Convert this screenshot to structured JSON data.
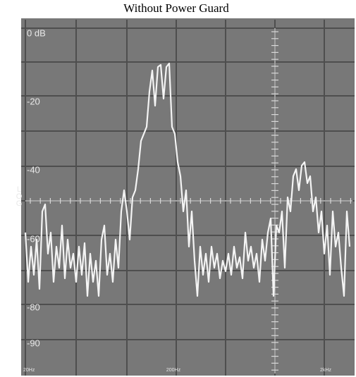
{
  "title": "Without Power Guard",
  "screen": {
    "y_labels": [
      "0 dB",
      "-20",
      "-40",
      "-60",
      "-80",
      "-90"
    ],
    "side_label": "LOG",
    "x_labels": [
      "20Hz",
      "200Hz",
      "2kHz"
    ]
  }
}
